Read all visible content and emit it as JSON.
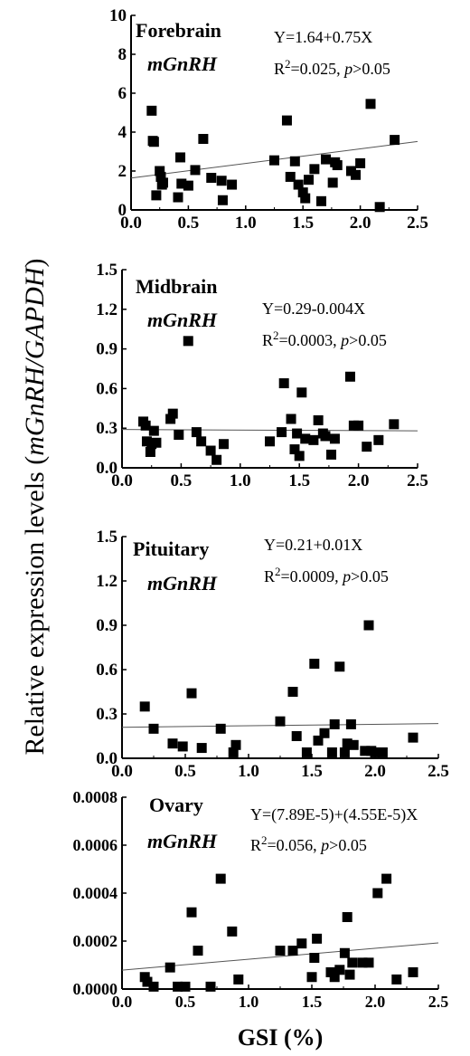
{
  "figure": {
    "ylabel_prefix": "Relative expression levels (",
    "ylabel_italic": "mGnRH/GAPDH",
    "ylabel_suffix": ")",
    "xlabel": "GSI (%)"
  },
  "chart_data": [
    {
      "type": "scatter",
      "region": "Forebrain",
      "gene": "mGnRH",
      "equation": "Y=1.64+0.75X",
      "r2_text": "R",
      "r2_value": "=0.025,",
      "p_label": "p",
      "p_value": ">0.05",
      "xlim": [
        0,
        2.5
      ],
      "ylim": [
        0,
        10
      ],
      "xticks": [
        "0.0",
        "0.5",
        "1.0",
        "1.5",
        "2.0",
        "2.5"
      ],
      "yticks": [
        "0",
        "2",
        "4",
        "6",
        "8",
        "10"
      ],
      "regression": {
        "intercept": 1.64,
        "slope": 0.75
      },
      "points": [
        [
          0.18,
          5.1
        ],
        [
          0.19,
          3.55
        ],
        [
          0.2,
          3.5
        ],
        [
          0.22,
          0.75
        ],
        [
          0.25,
          2.0
        ],
        [
          0.26,
          1.7
        ],
        [
          0.27,
          1.3
        ],
        [
          0.28,
          1.4
        ],
        [
          0.41,
          0.65
        ],
        [
          0.43,
          2.7
        ],
        [
          0.44,
          1.35
        ],
        [
          0.5,
          1.25
        ],
        [
          0.56,
          2.05
        ],
        [
          0.63,
          3.65
        ],
        [
          0.7,
          1.65
        ],
        [
          0.79,
          1.5
        ],
        [
          0.8,
          0.5
        ],
        [
          0.88,
          1.3
        ],
        [
          1.25,
          2.55
        ],
        [
          1.36,
          4.6
        ],
        [
          1.39,
          1.7
        ],
        [
          1.43,
          2.5
        ],
        [
          1.46,
          1.3
        ],
        [
          1.5,
          0.9
        ],
        [
          1.52,
          0.6
        ],
        [
          1.55,
          1.55
        ],
        [
          1.6,
          2.1
        ],
        [
          1.66,
          0.45
        ],
        [
          1.7,
          2.6
        ],
        [
          1.76,
          1.4
        ],
        [
          1.78,
          2.45
        ],
        [
          1.8,
          2.3
        ],
        [
          1.92,
          2.0
        ],
        [
          1.96,
          1.8
        ],
        [
          2.0,
          2.4
        ],
        [
          2.09,
          5.45
        ],
        [
          2.17,
          0.15
        ],
        [
          2.3,
          3.6
        ]
      ]
    },
    {
      "type": "scatter",
      "region": "Midbrain",
      "gene": "mGnRH",
      "equation": "Y=0.29-0.004X",
      "r2_text": "R",
      "r2_value": "=0.0003,",
      "p_label": "p",
      "p_value": ">0.05",
      "xlim": [
        0,
        2.5
      ],
      "ylim": [
        0,
        1.5
      ],
      "xticks": [
        "0.0",
        "0.5",
        "1.0",
        "1.5",
        "2.0",
        "2.5"
      ],
      "yticks": [
        "0.0",
        "0.3",
        "0.6",
        "0.9",
        "1.2",
        "1.5"
      ],
      "regression": {
        "intercept": 0.29,
        "slope": -0.004
      },
      "points": [
        [
          0.18,
          0.35
        ],
        [
          0.2,
          0.32
        ],
        [
          0.21,
          0.2
        ],
        [
          0.24,
          0.12
        ],
        [
          0.25,
          0.18
        ],
        [
          0.27,
          0.28
        ],
        [
          0.29,
          0.19
        ],
        [
          0.41,
          0.37
        ],
        [
          0.43,
          0.41
        ],
        [
          0.48,
          0.25
        ],
        [
          0.56,
          0.96
        ],
        [
          0.63,
          0.27
        ],
        [
          0.67,
          0.2
        ],
        [
          0.75,
          0.13
        ],
        [
          0.8,
          0.06
        ],
        [
          0.86,
          0.18
        ],
        [
          1.25,
          0.2
        ],
        [
          1.35,
          0.27
        ],
        [
          1.37,
          0.64
        ],
        [
          1.43,
          0.37
        ],
        [
          1.46,
          0.14
        ],
        [
          1.48,
          0.26
        ],
        [
          1.52,
          0.57
        ],
        [
          1.5,
          0.09
        ],
        [
          1.55,
          0.22
        ],
        [
          1.62,
          0.21
        ],
        [
          1.66,
          0.36
        ],
        [
          1.7,
          0.26
        ],
        [
          1.72,
          0.24
        ],
        [
          1.77,
          0.1
        ],
        [
          1.8,
          0.22
        ],
        [
          1.93,
          0.69
        ],
        [
          1.96,
          0.32
        ],
        [
          2.0,
          0.32
        ],
        [
          2.07,
          0.16
        ],
        [
          2.17,
          0.21
        ],
        [
          2.3,
          0.33
        ]
      ]
    },
    {
      "type": "scatter",
      "region": "Pituitary",
      "gene": "mGnRH",
      "equation": "Y=0.21+0.01X",
      "r2_text": "R",
      "r2_value": "=0.0009,",
      "p_label": "p",
      "p_value": ">0.05",
      "xlim": [
        0,
        2.5
      ],
      "ylim": [
        0,
        1.5
      ],
      "xticks": [
        "0.0",
        "0.5",
        "1.0",
        "1.5",
        "2.0",
        "2.5"
      ],
      "yticks": [
        "0.0",
        "0.3",
        "0.6",
        "0.9",
        "1.2",
        "1.5"
      ],
      "regression": {
        "intercept": 0.21,
        "slope": 0.01
      },
      "points": [
        [
          0.18,
          0.35
        ],
        [
          0.25,
          0.2
        ],
        [
          0.4,
          0.1
        ],
        [
          0.48,
          0.08
        ],
        [
          0.55,
          0.44
        ],
        [
          0.63,
          0.07
        ],
        [
          0.78,
          0.2
        ],
        [
          0.88,
          0.04
        ],
        [
          0.9,
          0.09
        ],
        [
          1.25,
          0.25
        ],
        [
          1.35,
          0.45
        ],
        [
          1.38,
          0.15
        ],
        [
          1.46,
          0.04
        ],
        [
          1.52,
          0.64
        ],
        [
          1.55,
          0.12
        ],
        [
          1.6,
          0.17
        ],
        [
          1.66,
          0.04
        ],
        [
          1.68,
          0.23
        ],
        [
          1.72,
          0.62
        ],
        [
          1.76,
          0.04
        ],
        [
          1.78,
          0.1
        ],
        [
          1.81,
          0.23
        ],
        [
          1.83,
          0.09
        ],
        [
          1.92,
          0.05
        ],
        [
          1.95,
          0.9
        ],
        [
          1.97,
          0.05
        ],
        [
          2.0,
          0.04
        ],
        [
          2.06,
          0.04
        ],
        [
          2.3,
          0.14
        ]
      ]
    },
    {
      "type": "scatter",
      "region": "Ovary",
      "gene": "mGnRH",
      "equation": "Y=(7.89E-5)+(4.55E-5)X",
      "r2_text": "R",
      "r2_value": "=0.056,",
      "p_label": "p",
      "p_value": ">0.05",
      "xlim": [
        0,
        2.5
      ],
      "ylim": [
        0,
        0.0008
      ],
      "xticks": [
        "0.0",
        "0.5",
        "1.0",
        "1.5",
        "2.0",
        "2.5"
      ],
      "yticks": [
        "0.0000",
        "0.0002",
        "0.0004",
        "0.0006",
        "0.0008"
      ],
      "regression": {
        "intercept": 7.89e-05,
        "slope": 4.55e-05
      },
      "points": [
        [
          0.18,
          5e-05
        ],
        [
          0.2,
          3e-05
        ],
        [
          0.25,
          1e-05
        ],
        [
          0.38,
          9e-05
        ],
        [
          0.44,
          1e-05
        ],
        [
          0.5,
          1e-05
        ],
        [
          0.55,
          0.00032
        ],
        [
          0.6,
          0.00016
        ],
        [
          0.7,
          1e-05
        ],
        [
          0.78,
          0.00046
        ],
        [
          0.87,
          0.00024
        ],
        [
          0.92,
          4e-05
        ],
        [
          1.25,
          0.00016
        ],
        [
          1.35,
          0.00016
        ],
        [
          1.42,
          0.00019
        ],
        [
          1.5,
          5e-05
        ],
        [
          1.52,
          0.00013
        ],
        [
          1.54,
          0.00021
        ],
        [
          1.65,
          7e-05
        ],
        [
          1.68,
          5e-05
        ],
        [
          1.72,
          8e-05
        ],
        [
          1.76,
          0.00015
        ],
        [
          1.78,
          0.0003
        ],
        [
          1.8,
          6e-05
        ],
        [
          1.82,
          0.00011
        ],
        [
          1.9,
          0.00011
        ],
        [
          1.95,
          0.00011
        ],
        [
          2.02,
          0.0004
        ],
        [
          2.09,
          0.00046
        ],
        [
          2.17,
          4e-05
        ],
        [
          2.3,
          7e-05
        ]
      ]
    }
  ]
}
